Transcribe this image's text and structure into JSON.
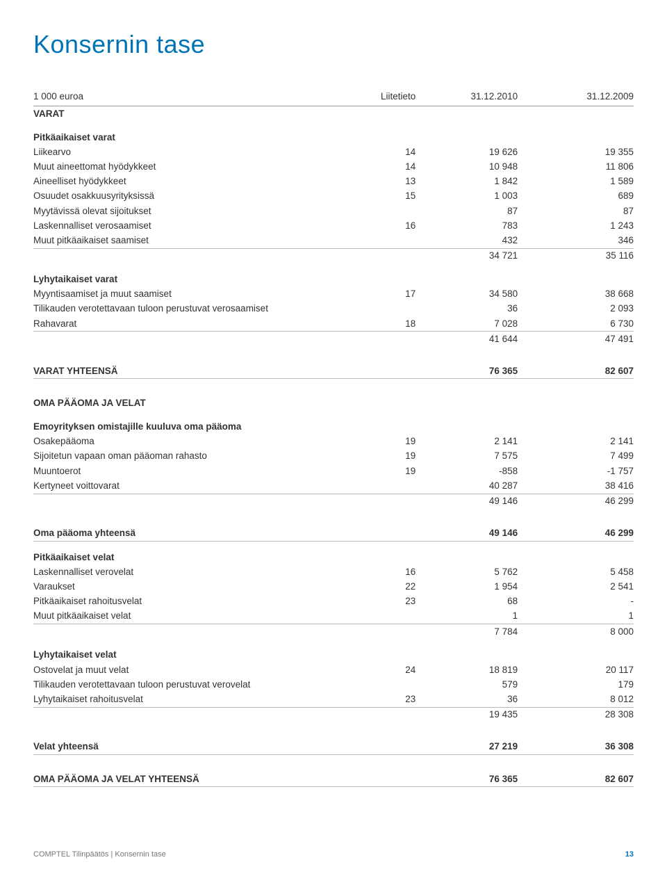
{
  "title": "Konsernin tase",
  "header": {
    "col0": "1 000 euroa",
    "col1": "Liitetieto",
    "col2": "31.12.2010",
    "col3": "31.12.2009"
  },
  "sections": [
    {
      "heading": "VARAT",
      "plain": true
    },
    {
      "heading": "Pitkäaikaiset varat",
      "rows": [
        [
          "Liikearvo",
          "14",
          "19 626",
          "19 355"
        ],
        [
          "Muut aineettomat hyödykkeet",
          "14",
          "10 948",
          "11 806"
        ],
        [
          "Aineelliset hyödykkeet",
          "13",
          "1 842",
          "1 589"
        ],
        [
          "Osuudet osakkuusyrityksissä",
          "15",
          "1 003",
          "689"
        ],
        [
          "Myytävissä olevat sijoitukset",
          "",
          "87",
          "87"
        ],
        [
          "Laskennalliset verosaamiset",
          "16",
          "783",
          "1 243"
        ],
        [
          "Muut pitkäaikaiset saamiset",
          "",
          "432",
          "346"
        ]
      ],
      "subtotal": [
        "",
        "",
        "34 721",
        "35 116"
      ]
    },
    {
      "heading": "Lyhytaikaiset varat",
      "rows": [
        [
          "Myyntisaamiset ja muut saamiset",
          "17",
          "34 580",
          "38 668"
        ],
        [
          "Tilikauden verotettavaan tuloon perustuvat verosaamiset",
          "",
          "36",
          "2 093"
        ],
        [
          "Rahavarat",
          "18",
          "7 028",
          "6 730"
        ]
      ],
      "subtotal": [
        "",
        "",
        "41 644",
        "47 491"
      ]
    },
    {
      "total": [
        "VARAT YHTEENSÄ",
        "",
        "76 365",
        "82 607"
      ]
    },
    {
      "heading": "OMA PÄÄOMA JA VELAT",
      "plain": true
    },
    {
      "heading": "Emoyrityksen omistajille kuuluva oma pääoma",
      "rows": [
        [
          "Osakepääoma",
          "19",
          "2 141",
          "2 141"
        ],
        [
          "Sijoitetun vapaan oman pääoman rahasto",
          "19",
          "7 575",
          "7 499"
        ],
        [
          "Muuntoerot",
          "19",
          "-858",
          "-1 757"
        ],
        [
          "Kertyneet voittovarat",
          "",
          "40 287",
          "38 416"
        ]
      ],
      "subtotal": [
        "",
        "",
        "49 146",
        "46 299"
      ]
    },
    {
      "total": [
        "Oma pääoma yhteensä",
        "",
        "49 146",
        "46 299"
      ]
    },
    {
      "heading": "Pitkäaikaiset velat",
      "rows": [
        [
          "Laskennalliset verovelat",
          "16",
          "5 762",
          "5 458"
        ],
        [
          "Varaukset",
          "22",
          "1 954",
          "2 541"
        ],
        [
          "Pitkäaikaiset rahoitusvelat",
          "23",
          "68",
          "-"
        ],
        [
          "Muut pitkäaikaiset velat",
          "",
          "1",
          "1"
        ]
      ],
      "subtotal": [
        "",
        "",
        "7 784",
        "8 000"
      ]
    },
    {
      "heading": "Lyhytaikaiset velat",
      "rows": [
        [
          "Ostovelat ja muut velat",
          "24",
          "18 819",
          "20 117"
        ],
        [
          "Tilikauden verotettavaan tuloon perustuvat verovelat",
          "",
          "579",
          "179"
        ],
        [
          "Lyhytaikaiset rahoitusvelat",
          "23",
          "36",
          "8 012"
        ]
      ],
      "subtotal": [
        "",
        "",
        "19 435",
        "28 308"
      ]
    },
    {
      "total": [
        "Velat yhteensä",
        "",
        "27 219",
        "36 308"
      ]
    },
    {
      "total": [
        "OMA PÄÄOMA JA VELAT YHTEENSÄ",
        "",
        "76 365",
        "82 607"
      ]
    }
  ],
  "footer": {
    "left": "COMPTEL  Tilinpäätös | Konsernin tase",
    "page": "13"
  }
}
